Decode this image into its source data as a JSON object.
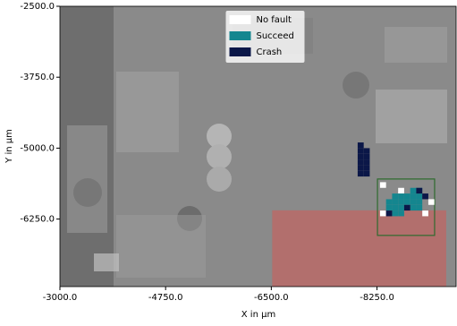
{
  "chart_data": {
    "type": "cellmap",
    "x_label": "X in µm",
    "y_label": "Y in µm",
    "xlim": [
      -3000,
      -9560
    ],
    "ylim": [
      -2500,
      -7440
    ],
    "xticks": [
      {
        "value": -3000,
        "label": "-3000.0"
      },
      {
        "value": -4750,
        "label": "-4750.0"
      },
      {
        "value": -6500,
        "label": "-6500.0"
      },
      {
        "value": -8250,
        "label": "-8250.0"
      }
    ],
    "yticks": [
      {
        "value": -2500,
        "label": "-2500.0"
      },
      {
        "value": -3750,
        "label": "-3750.0"
      },
      {
        "value": -5000,
        "label": "-5000.0"
      },
      {
        "value": -6250,
        "label": "-6250.0"
      }
    ],
    "cell_size": 100,
    "legend": "upper center",
    "regions": [
      {
        "color": "#d9534f",
        "fill": true,
        "x": [
          -6515,
          -9396
        ],
        "y": [
          -6096,
          -7440
        ]
      },
      {
        "color": "#2e6b2e",
        "fill": false,
        "x": [
          -8258,
          -9204
        ],
        "y": [
          -5544,
          -6538
        ]
      }
    ],
    "series": [
      {
        "name": "No fault",
        "color": "#ffffff",
        "x": [
          -8350,
          -8650,
          -9150,
          -8350,
          -9050
        ],
        "values": [
          -5650,
          -5750,
          -5950,
          -6150,
          -6150
        ]
      },
      {
        "name": "Succeed",
        "color": "#14868f",
        "x": [
          -8850,
          -8950,
          -8550,
          -8650,
          -8750,
          -8850,
          -8950,
          -8450,
          -8550,
          -8650,
          -8750,
          -8850,
          -8950,
          -8450,
          -8550,
          -8650,
          -8850,
          -8950,
          -8550,
          -8650
        ],
        "values": [
          -5750,
          -5750,
          -5850,
          -5850,
          -5850,
          -5850,
          -5850,
          -5950,
          -5950,
          -5950,
          -5950,
          -5950,
          -5950,
          -6050,
          -6050,
          -6050,
          -6050,
          -6050,
          -6150,
          -6150
        ]
      },
      {
        "name": "Crash",
        "color": "#0b1748",
        "x": [
          -7980,
          -7980,
          -8080,
          -7980,
          -8080,
          -7980,
          -8080,
          -7980,
          -8080,
          -7980,
          -8080,
          -9050,
          -8950,
          -8450,
          -8750
        ],
        "values": [
          -4950,
          -5050,
          -5050,
          -5150,
          -5150,
          -5250,
          -5250,
          -5350,
          -5350,
          -5450,
          -5450,
          -5850,
          -5750,
          -6150,
          -6050
        ]
      }
    ]
  }
}
